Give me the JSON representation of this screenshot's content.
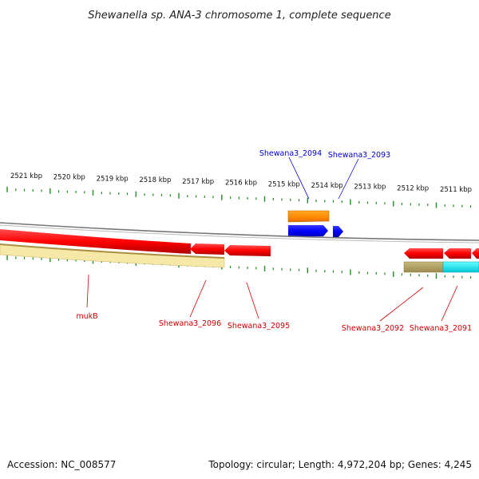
{
  "title": "Shewanella sp. ANA-3 chromosome 1, complete sequence",
  "footer": {
    "accession": "Accession: NC_008577",
    "summary": "Topology: circular; Length: 4,972,204 bp; Genes: 4,245"
  },
  "ruler_labels": [
    "2521 kbp",
    "2520 kbp",
    "2519 kbp",
    "2518 kbp",
    "2517 kbp",
    "2516 kbp",
    "2515 kbp",
    "2514 kbp",
    "2513 kbp",
    "2512 kbp",
    "2511 kbp"
  ],
  "genes": [
    {
      "name": "Shewana3_2094",
      "strand": "forward",
      "color": "#0000cc"
    },
    {
      "name": "Shewana3_2093",
      "strand": "forward",
      "color": "#0000cc"
    },
    {
      "name": "mukB",
      "strand": "reverse",
      "color": "#cc0000"
    },
    {
      "name": "Shewana3_2096",
      "strand": "reverse",
      "color": "#cc0000"
    },
    {
      "name": "Shewana3_2095",
      "strand": "reverse",
      "color": "#cc0000"
    },
    {
      "name": "Shewana3_2092",
      "strand": "reverse",
      "color": "#cc0000"
    },
    {
      "name": "Shewana3_2091",
      "strand": "reverse",
      "color": "#cc0000"
    }
  ],
  "colors": {
    "forward_gene": "#0000ff",
    "reverse_gene": "#ff0000",
    "forward_feature": "#ff9900",
    "reverse_feature_tan": "#f5e6a0",
    "reverse_feature_olive": "#b0a060",
    "reverse_feature_cyan": "#00e5ee",
    "backbone": "#888888",
    "ticks": "#228b22"
  }
}
